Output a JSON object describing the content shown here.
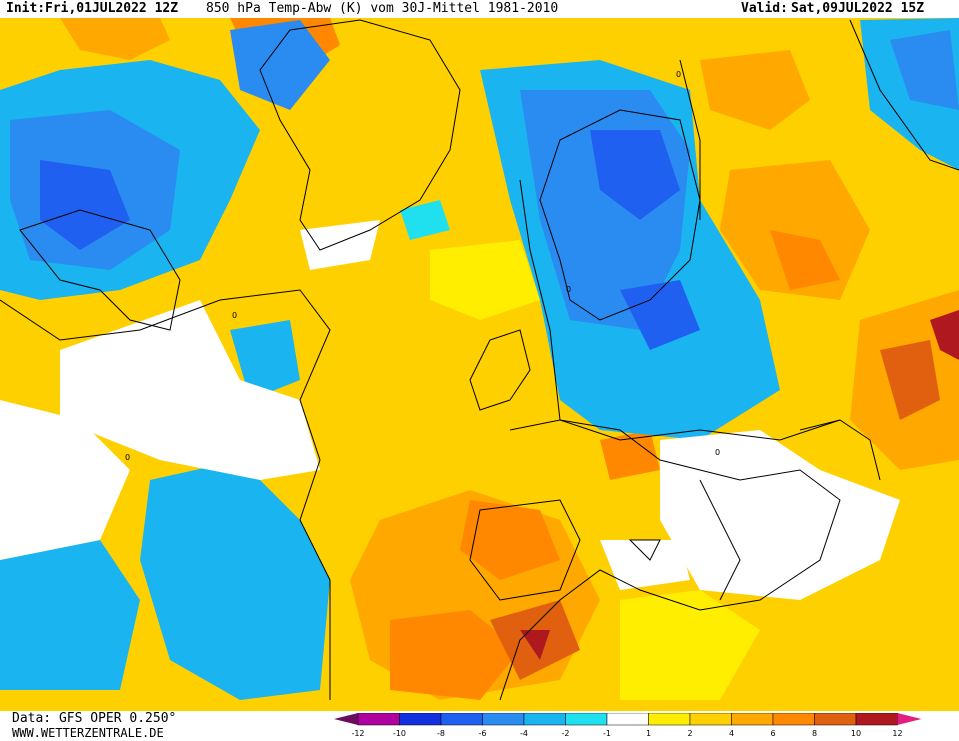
{
  "header": {
    "init_label": "Init:",
    "init_value": "Fri,01JUL2022 12Z",
    "title": "850 hPa Temp-Abw (K) vom 30J-Mittel 1981-2010",
    "valid_label": "Valid:",
    "valid_value": "Sat,09JUL2022 15Z"
  },
  "footer": {
    "data_source": "Data: GFS OPER 0.250°",
    "website": "WWW.WETTERZENTRALE.DE"
  },
  "legend": {
    "ticks": [
      "-12",
      "-10",
      "-8",
      "-6",
      "-4",
      "-2",
      "-1",
      "1",
      "2",
      "4",
      "6",
      "8",
      "10",
      "12"
    ],
    "colors": [
      "#6a0d5e",
      "#b0009f",
      "#1230e0",
      "#2060f0",
      "#2a8cf0",
      "#1ab4f0",
      "#20e0f0",
      "#ffffff",
      "#ffee00",
      "#ffd000",
      "#ffa800",
      "#ff8800",
      "#e06010",
      "#b01820",
      "#e02080"
    ]
  },
  "map": {
    "contour_label": "0"
  }
}
